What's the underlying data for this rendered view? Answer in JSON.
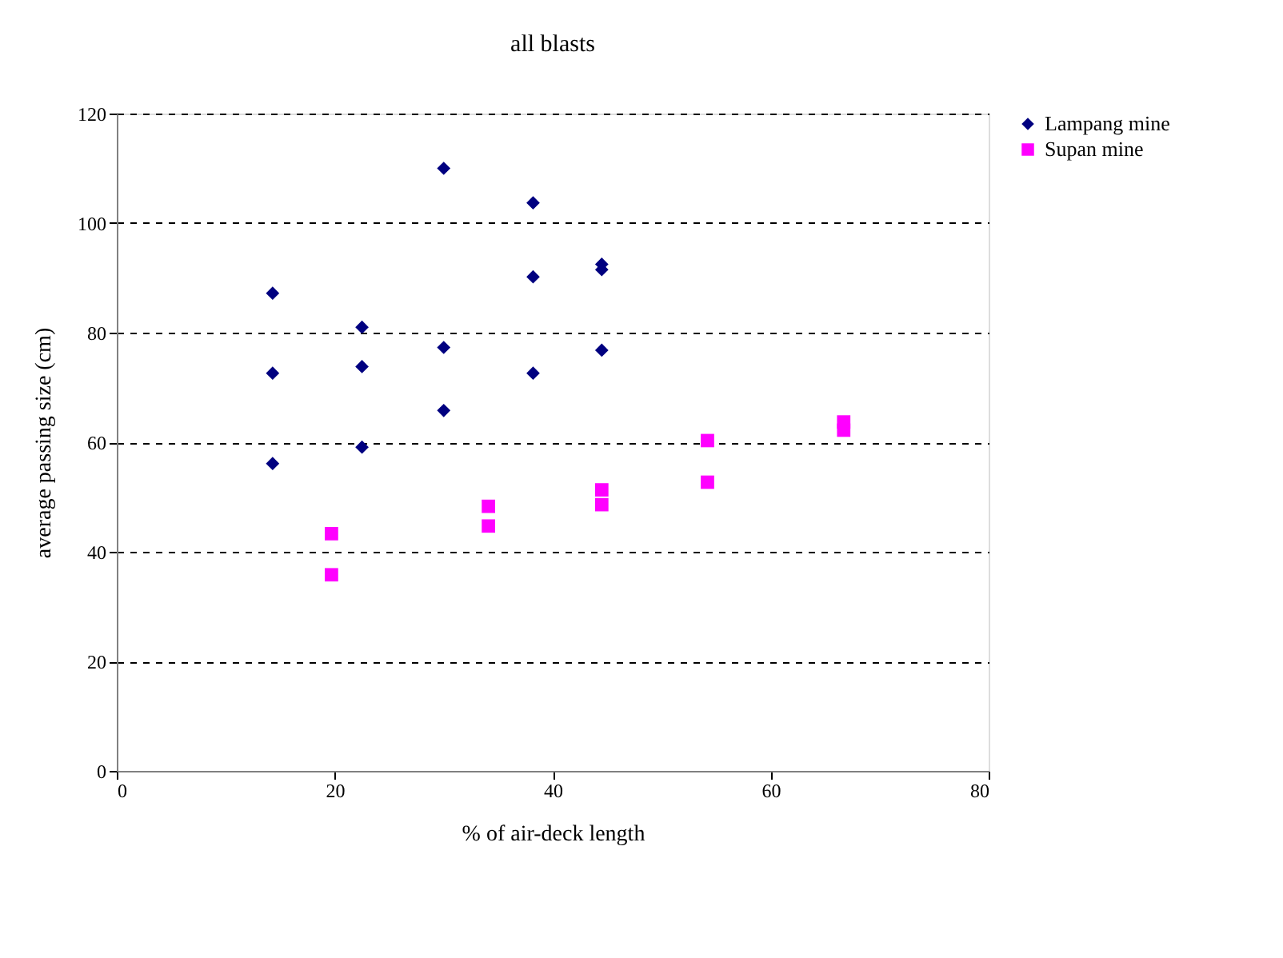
{
  "chart_data": {
    "type": "scatter",
    "title": "all blasts",
    "xlabel": "% of air-deck length",
    "ylabel": "average passing size (cm)",
    "xlim": [
      0,
      80
    ],
    "xticks": [
      0,
      20,
      40,
      60,
      80
    ],
    "ylim": [
      0,
      120
    ],
    "yticks": [
      0,
      20,
      40,
      60,
      80,
      100,
      120
    ],
    "grid": "y",
    "legend": "right",
    "series": [
      {
        "name": "Lampang mine",
        "color": "#000080",
        "marker": "diamond",
        "x": [
          14.3,
          14.3,
          14.3,
          22.5,
          22.5,
          22.5,
          30.0,
          30.0,
          30.0,
          38.2,
          38.2,
          38.2,
          44.5,
          44.5,
          44.5
        ],
        "values": [
          87.2,
          72.6,
          56.1,
          81.0,
          73.8,
          59.1,
          110.0,
          77.3,
          65.8,
          103.7,
          90.2,
          72.6,
          92.5,
          91.5,
          76.8
        ]
      },
      {
        "name": "Supan mine",
        "color": "#ff00ff",
        "marker": "square",
        "x": [
          19.7,
          19.7,
          34.1,
          34.1,
          44.5,
          44.5,
          54.2,
          54.2,
          66.7,
          66.7
        ],
        "values": [
          43.3,
          35.8,
          48.3,
          44.7,
          51.3,
          48.6,
          60.3,
          52.7,
          63.7,
          62.2
        ]
      }
    ]
  }
}
